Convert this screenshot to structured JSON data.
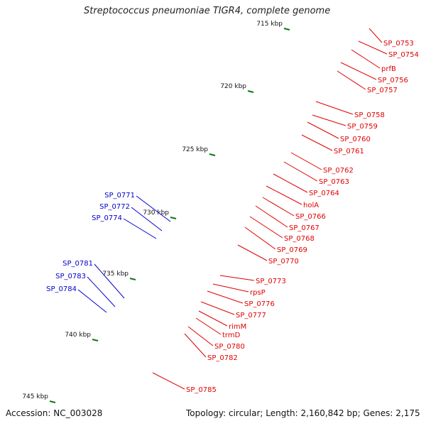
{
  "title": "Streptococcus pneumoniae TIGR4, complete genome",
  "accession": {
    "label": "Accession:",
    "value": "NC_003028"
  },
  "topology": {
    "label": "Topology:",
    "value": "circular"
  },
  "length": {
    "label": "Length:",
    "value": "2,160,842 bp"
  },
  "genes_count": {
    "label": "Genes:",
    "value": "2,175"
  },
  "footer_left": "Accession: NC_003028",
  "footer_right": "Topology: circular; Length: 2,160,842 bp; Genes: 2,175",
  "colors": {
    "backbone": "#8a8a8a",
    "forward_label": "#e00000",
    "reverse_label": "#0000cc",
    "gc_tick": "#117711",
    "red": "#ee1111",
    "blue": "#0000ee",
    "pink": "#f39a9a",
    "gray": "#c4c4c4",
    "cyan": "#2ee0e0",
    "yellow": "#f5f0a0",
    "orange": "#ff8c1a",
    "magenta": "#e020c0",
    "purple": "#6040a0",
    "darkgray": "#606060",
    "green": "#30e890",
    "olive": "#8a9a30",
    "khaki": "#b8a860",
    "steelblue": "#5a8ac0"
  },
  "ticks": [
    {
      "label": "715 kbp"
    },
    {
      "label": "720 kbp"
    },
    {
      "label": "725 kbp"
    },
    {
      "label": "730 kbp"
    },
    {
      "label": "735 kbp"
    },
    {
      "label": "740 kbp"
    },
    {
      "label": "745 kbp"
    }
  ],
  "forward_labels": [
    "SP_0753",
    "SP_0754",
    "prfB",
    "SP_0756",
    "SP_0757",
    "SP_0758",
    "SP_0759",
    "SP_0760",
    "SP_0761",
    "SP_0762",
    "SP_0763",
    "SP_0764",
    "holA",
    "SP_0766",
    "SP_0767",
    "SP_0768",
    "SP_0769",
    "SP_0770",
    "SP_0773",
    "rpsP",
    "SP_0776",
    "SP_0777",
    "rimM",
    "trmD",
    "SP_0780",
    "SP_0782",
    "SP_0785"
  ],
  "reverse_labels": [
    "SP_0771",
    "SP_0772",
    "SP_0774",
    "SP_0781",
    "SP_0783",
    "SP_0784"
  ]
}
